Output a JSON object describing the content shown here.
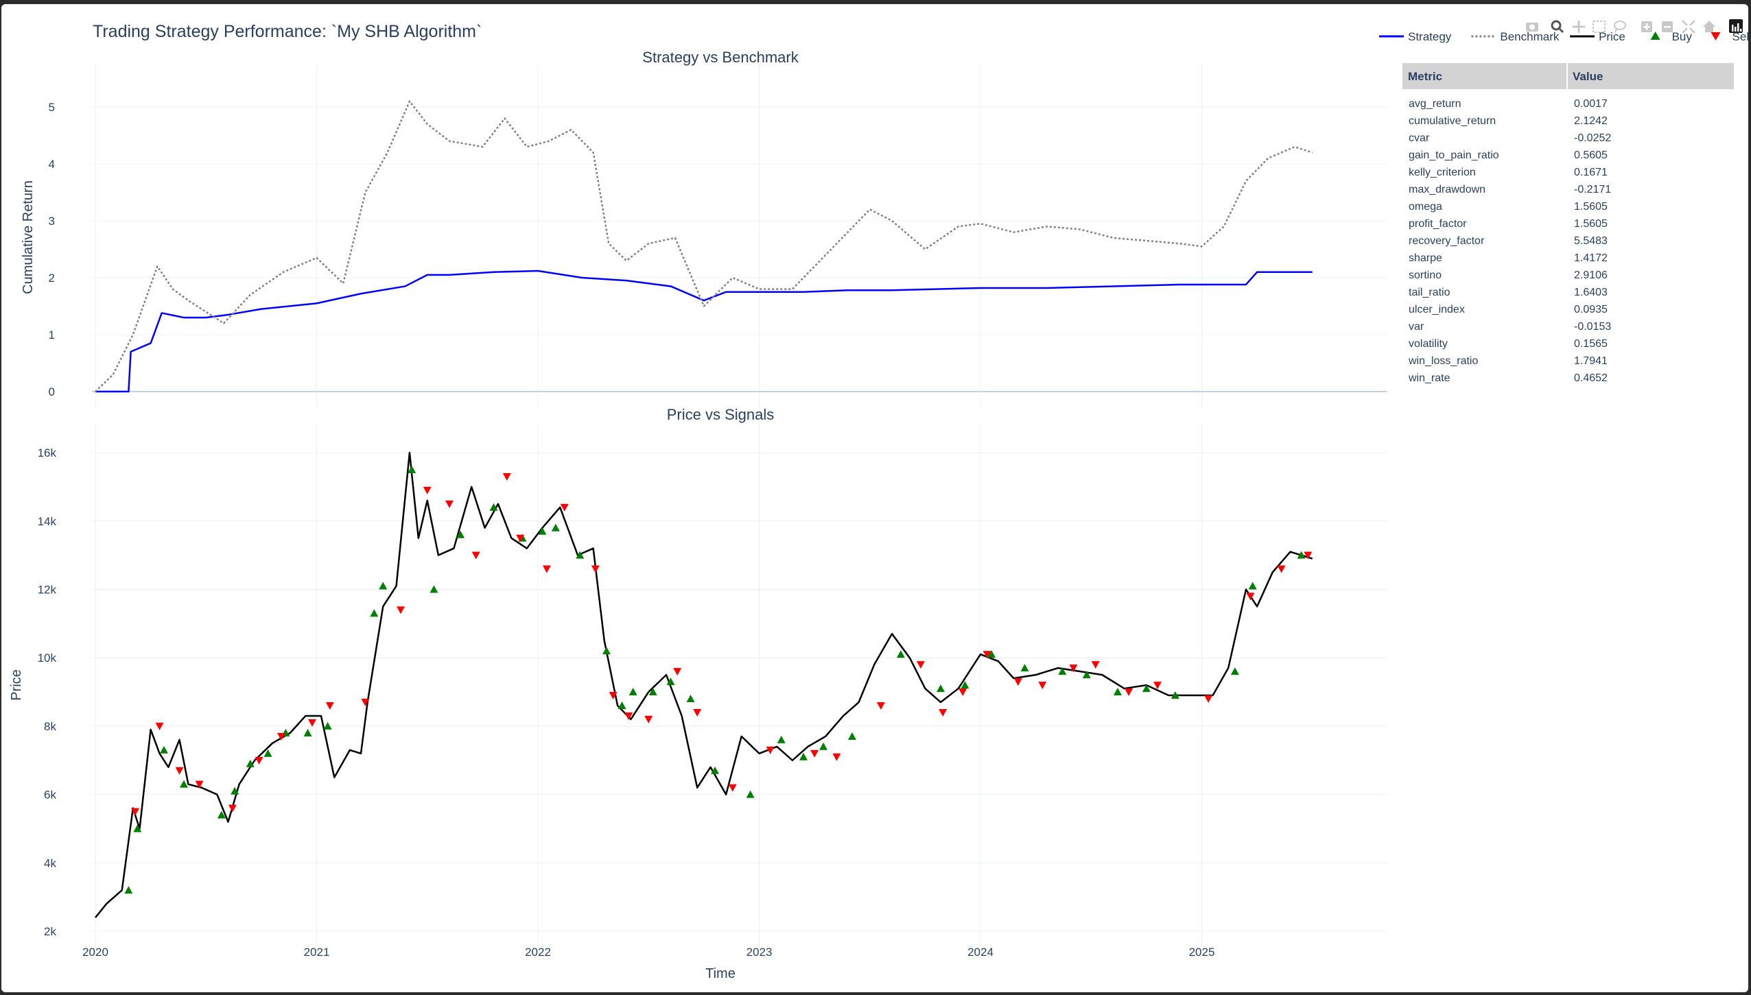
{
  "title": "Trading Strategy Performance: `My SHB Algorithm`",
  "modebar": [
    "camera-icon",
    "zoom-icon",
    "pan-icon",
    "box-select-icon",
    "lasso-select-icon",
    "zoom-in-icon",
    "zoom-out-icon",
    "autoscale-icon",
    "reset-axes-icon",
    "plotly-logo-icon"
  ],
  "legend": {
    "items": [
      {
        "name": "Strategy",
        "color": "#0000ff",
        "symbol": "line"
      },
      {
        "name": "Benchmark",
        "color": "#808080",
        "symbol": "dotted"
      },
      {
        "name": "Price",
        "color": "#000000",
        "symbol": "line"
      },
      {
        "name": "Buy",
        "color": "#008000",
        "symbol": "triangle-up"
      },
      {
        "name": "Sell",
        "color": "#ff0000",
        "symbol": "triangle-down"
      }
    ]
  },
  "table": {
    "headers": [
      "Metric",
      "Value"
    ],
    "header_bg": "#d3d3d3",
    "rows": [
      [
        "avg_return",
        "0.0017"
      ],
      [
        "cumulative_return",
        "2.1242"
      ],
      [
        "cvar",
        "-0.0252"
      ],
      [
        "gain_to_pain_ratio",
        "0.5605"
      ],
      [
        "kelly_criterion",
        "0.1671"
      ],
      [
        "max_drawdown",
        "-0.2171"
      ],
      [
        "omega",
        "1.5605"
      ],
      [
        "profit_factor",
        "1.5605"
      ],
      [
        "recovery_factor",
        "5.5483"
      ],
      [
        "sharpe",
        "1.4172"
      ],
      [
        "sortino",
        "2.9106"
      ],
      [
        "tail_ratio",
        "1.6403"
      ],
      [
        "ulcer_index",
        "0.0935"
      ],
      [
        "var",
        "-0.0153"
      ],
      [
        "volatility",
        "0.1565"
      ],
      [
        "win_loss_ratio",
        "1.7941"
      ],
      [
        "win_rate",
        "0.4652"
      ]
    ]
  },
  "chart_data": [
    {
      "type": "line",
      "title": "Strategy vs Benchmark",
      "xlabel": "",
      "ylabel": "Cumulative Return",
      "xlim": [
        2020.0,
        5.8
      ],
      "xlim_note": "",
      "x_ticks": [
        "2020",
        "2021",
        "2022",
        "2023",
        "2024",
        "2025"
      ],
      "ylim": [
        -0.1,
        5.8
      ],
      "y_ticks": [
        0,
        1,
        2,
        3,
        4,
        5
      ],
      "grid": true,
      "series": [
        {
          "name": "Strategy",
          "color": "#0000ff",
          "dash": "solid",
          "x": [
            2020.0,
            2020.15,
            2020.16,
            2020.25,
            2020.3,
            2020.4,
            2020.5,
            2020.6,
            2020.75,
            2021.0,
            2021.2,
            2021.4,
            2021.5,
            2021.6,
            2021.8,
            2022.0,
            2022.2,
            2022.4,
            2022.6,
            2022.75,
            2022.85,
            2023.0,
            2023.2,
            2023.4,
            2023.6,
            2023.8,
            2024.0,
            2024.3,
            2024.6,
            2024.9,
            2025.2,
            2025.25,
            2025.5
          ],
          "y": [
            0.0,
            0.0,
            0.7,
            0.85,
            1.38,
            1.3,
            1.3,
            1.35,
            1.45,
            1.55,
            1.72,
            1.85,
            2.05,
            2.05,
            2.1,
            2.12,
            2.0,
            1.95,
            1.85,
            1.6,
            1.75,
            1.75,
            1.75,
            1.78,
            1.78,
            1.8,
            1.82,
            1.82,
            1.85,
            1.88,
            1.88,
            2.1,
            2.1
          ]
        },
        {
          "name": "Benchmark",
          "color": "#808080",
          "dash": "dot",
          "x": [
            2020.0,
            2020.08,
            2020.17,
            2020.28,
            2020.35,
            2020.42,
            2020.5,
            2020.58,
            2020.7,
            2020.85,
            2021.0,
            2021.12,
            2021.22,
            2021.32,
            2021.42,
            2021.5,
            2021.6,
            2021.75,
            2021.85,
            2021.95,
            2022.05,
            2022.15,
            2022.25,
            2022.32,
            2022.4,
            2022.5,
            2022.62,
            2022.75,
            2022.88,
            2023.0,
            2023.15,
            2023.35,
            2023.5,
            2023.6,
            2023.75,
            2023.9,
            2024.0,
            2024.15,
            2024.3,
            2024.45,
            2024.6,
            2024.75,
            2024.9,
            2025.0,
            2025.1,
            2025.2,
            2025.3,
            2025.42,
            2025.5
          ],
          "y": [
            0.0,
            0.3,
            1.0,
            2.2,
            1.8,
            1.6,
            1.4,
            1.2,
            1.7,
            2.1,
            2.35,
            1.9,
            3.5,
            4.2,
            5.1,
            4.7,
            4.4,
            4.3,
            4.8,
            4.3,
            4.4,
            4.6,
            4.2,
            2.6,
            2.3,
            2.6,
            2.7,
            1.5,
            2.0,
            1.8,
            1.8,
            2.6,
            3.2,
            3.0,
            2.5,
            2.9,
            2.95,
            2.8,
            2.9,
            2.85,
            2.7,
            2.65,
            2.6,
            2.55,
            2.9,
            3.7,
            4.1,
            4.3,
            4.2
          ]
        }
      ]
    },
    {
      "type": "line",
      "title": "Price vs Signals",
      "xlabel": "Time",
      "ylabel": "Price",
      "x_ticks": [
        "2020",
        "2021",
        "2022",
        "2023",
        "2024",
        "2025"
      ],
      "y_ticks": [
        "2k",
        "4k",
        "6k",
        "8k",
        "10k",
        "12k",
        "14k",
        "16k"
      ],
      "ylim": [
        1900,
        16800
      ],
      "grid": true,
      "series": [
        {
          "name": "Price",
          "color": "#000000",
          "dash": "solid",
          "x": [
            2020.0,
            2020.05,
            2020.12,
            2020.17,
            2020.2,
            2020.25,
            2020.29,
            2020.33,
            2020.38,
            2020.42,
            2020.48,
            2020.55,
            2020.6,
            2020.65,
            2020.72,
            2020.8,
            2020.88,
            2020.95,
            2021.02,
            2021.08,
            2021.15,
            2021.2,
            2021.23,
            2021.3,
            2021.36,
            2021.42,
            2021.46,
            2021.5,
            2021.55,
            2021.62,
            2021.7,
            2021.76,
            2021.82,
            2021.88,
            2021.95,
            2022.02,
            2022.1,
            2022.18,
            2022.25,
            2022.3,
            2022.36,
            2022.42,
            2022.5,
            2022.58,
            2022.65,
            2022.72,
            2022.78,
            2022.85,
            2022.92,
            2023.0,
            2023.08,
            2023.15,
            2023.22,
            2023.3,
            2023.38,
            2023.45,
            2023.52,
            2023.6,
            2023.68,
            2023.75,
            2023.82,
            2023.9,
            2024.0,
            2024.08,
            2024.15,
            2024.25,
            2024.35,
            2024.45,
            2024.55,
            2024.65,
            2024.75,
            2024.85,
            2024.95,
            2025.05,
            2025.12,
            2025.2,
            2025.25,
            2025.32,
            2025.4,
            2025.5
          ],
          "y": [
            2400,
            2800,
            3200,
            5600,
            5000,
            7900,
            7200,
            6800,
            7600,
            6300,
            6200,
            6000,
            5200,
            6300,
            7000,
            7500,
            7800,
            8300,
            8300,
            6500,
            7300,
            7200,
            8700,
            11500,
            12100,
            16000,
            13500,
            14600,
            13000,
            13200,
            15000,
            13800,
            14500,
            13500,
            13200,
            13800,
            14400,
            13000,
            13200,
            10500,
            8600,
            8200,
            9000,
            9500,
            8300,
            6200,
            6800,
            6000,
            7700,
            7200,
            7400,
            7000,
            7400,
            7700,
            8300,
            8700,
            9800,
            10700,
            10000,
            9100,
            8700,
            9100,
            10100,
            9900,
            9400,
            9500,
            9700,
            9600,
            9500,
            9100,
            9200,
            8900,
            8900,
            8900,
            9700,
            12000,
            11500,
            12500,
            13100,
            12900
          ]
        },
        {
          "name": "Buy",
          "color": "#008000",
          "symbol": "triangle-up",
          "x": [
            2020.15,
            2020.19,
            2020.31,
            2020.4,
            2020.57,
            2020.63,
            2020.7,
            2020.78,
            2020.86,
            2020.96,
            2021.05,
            2021.26,
            2021.3,
            2021.43,
            2021.53,
            2021.65,
            2021.8,
            2021.93,
            2022.02,
            2022.08,
            2022.19,
            2022.31,
            2022.38,
            2022.43,
            2022.52,
            2022.6,
            2022.69,
            2022.8,
            2022.96,
            2023.1,
            2023.2,
            2023.29,
            2023.42,
            2023.64,
            2023.82,
            2023.93,
            2024.05,
            2024.2,
            2024.37,
            2024.48,
            2024.62,
            2024.75,
            2024.88,
            2025.15,
            2025.23,
            2025.45
          ],
          "y": [
            3200,
            5000,
            7300,
            6300,
            5400,
            6100,
            6900,
            7200,
            7800,
            7800,
            8000,
            11300,
            12100,
            15500,
            12000,
            13600,
            14400,
            13500,
            13700,
            13800,
            13000,
            10200,
            8600,
            9000,
            9000,
            9300,
            8800,
            6700,
            6000,
            7600,
            7100,
            7400,
            7700,
            10100,
            9100,
            9200,
            10100,
            9700,
            9600,
            9500,
            9000,
            9100,
            8900,
            9600,
            12100,
            13000
          ]
        },
        {
          "name": "Sell",
          "color": "#ff0000",
          "symbol": "triangle-down",
          "x": [
            2020.18,
            2020.29,
            2020.38,
            2020.47,
            2020.62,
            2020.74,
            2020.84,
            2020.98,
            2021.06,
            2021.22,
            2021.38,
            2021.5,
            2021.6,
            2021.72,
            2021.86,
            2021.92,
            2022.04,
            2022.12,
            2022.26,
            2022.34,
            2022.41,
            2022.5,
            2022.63,
            2022.72,
            2022.88,
            2023.05,
            2023.25,
            2023.35,
            2023.55,
            2023.73,
            2023.83,
            2023.92,
            2024.03,
            2024.17,
            2024.28,
            2024.42,
            2024.52,
            2024.67,
            2024.8,
            2025.03,
            2025.22,
            2025.36,
            2025.48
          ],
          "y": [
            5500,
            8000,
            6700,
            6300,
            5600,
            7000,
            7700,
            8100,
            8600,
            8700,
            11400,
            14900,
            14500,
            13000,
            15300,
            13500,
            12600,
            14400,
            12600,
            8900,
            8300,
            8200,
            9600,
            8400,
            6200,
            7300,
            7200,
            7100,
            8600,
            9800,
            8400,
            9000,
            10100,
            9300,
            9200,
            9700,
            9800,
            9000,
            9200,
            8800,
            11800,
            12600,
            13000
          ]
        }
      ]
    }
  ]
}
